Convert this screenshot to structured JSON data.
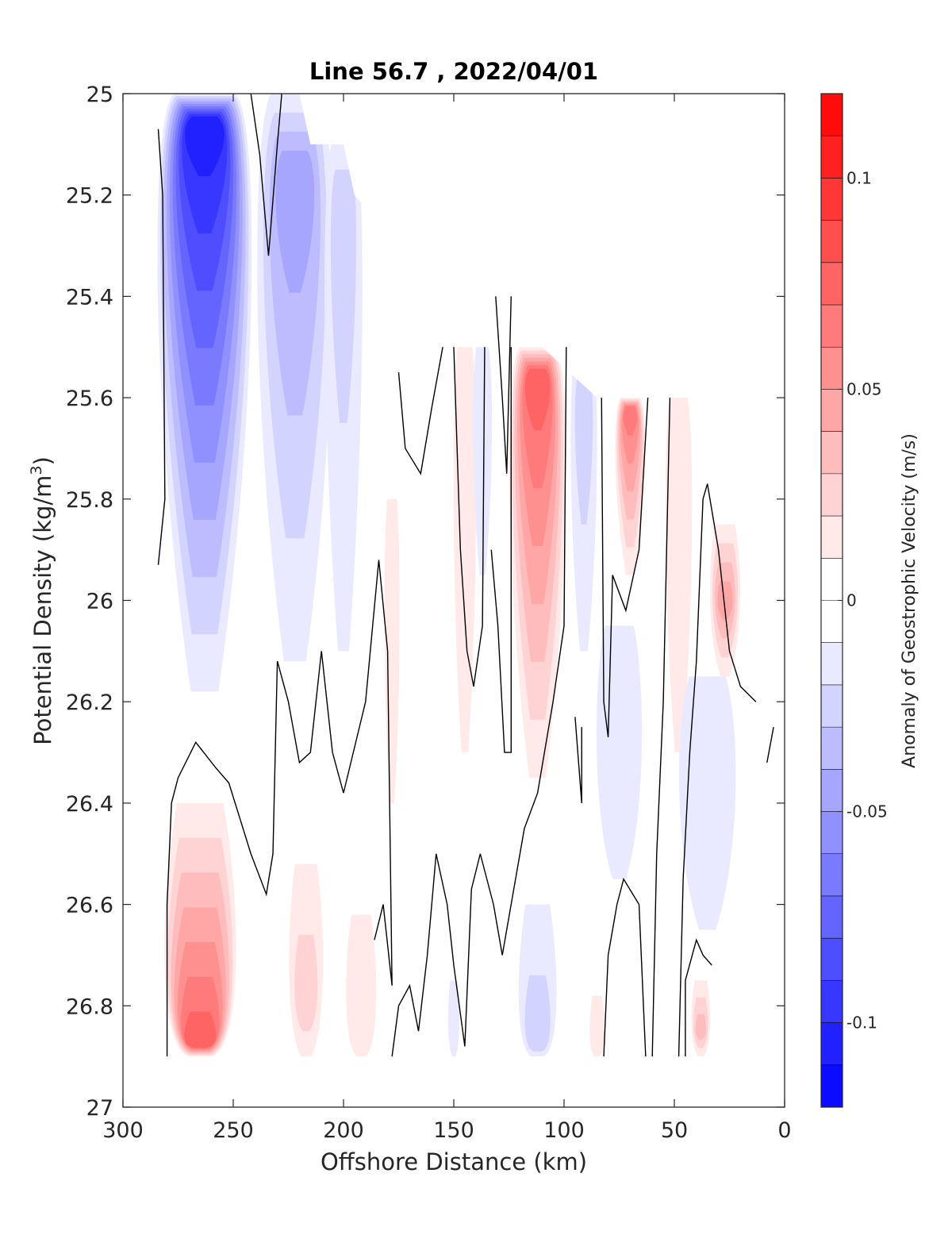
{
  "chart_data": {
    "type": "heatmap",
    "title": "Line 56.7 , 2022/04/01",
    "xlabel": "Offshore Distance (km)",
    "ylabel": "Potential Density (kg/m",
    "ylabel_sup": "3",
    "ylabel_end": ")",
    "x_reversed": true,
    "y_reversed": true,
    "xlim": [
      0,
      300
    ],
    "ylim": [
      25,
      27
    ],
    "xticks": [
      300,
      250,
      200,
      150,
      100,
      50,
      0
    ],
    "xtick_labels": [
      "300",
      "250",
      "200",
      "150",
      "100",
      "50",
      "0"
    ],
    "yticks": [
      25,
      25.2,
      25.4,
      25.6,
      25.8,
      26,
      26.2,
      26.4,
      26.6,
      26.8,
      27
    ],
    "ytick_labels": [
      "25",
      "25.2",
      "25.4",
      "25.6",
      "25.8",
      "26",
      "26.2",
      "26.4",
      "26.6",
      "26.8",
      "27"
    ],
    "colorbar": {
      "label": "Anomaly of Geostrophic Velocity (m/s)",
      "range": [
        -0.12,
        0.12
      ],
      "ticks": [
        0.1,
        0.05,
        0,
        -0.05,
        -0.1
      ],
      "tick_labels": [
        "0.1",
        "0.05",
        "0",
        "-0.05",
        "-0.1"
      ],
      "levels": 24,
      "colormap": "blue-white-red",
      "colors": {
        "negative": "#0000ff",
        "zero": "#ffffff",
        "positive": "#ff0000"
      }
    },
    "contour_level": 0,
    "contour_color": "#000000",
    "data_mask_top": [
      [
        300,
        25.0
      ],
      [
        220,
        25.0
      ],
      [
        215,
        25.1
      ],
      [
        200,
        25.1
      ],
      [
        195,
        25.2
      ],
      [
        175,
        25.3
      ],
      [
        160,
        25.4
      ],
      [
        150,
        25.5
      ],
      [
        110,
        25.5
      ],
      [
        85,
        25.6
      ],
      [
        50,
        25.6
      ],
      [
        0,
        25.6
      ]
    ],
    "data_bottom": 26.9,
    "anomaly_features": [
      {
        "x": 263,
        "y_top": 25.0,
        "y_bottom": 26.18,
        "peak_y": 25.05,
        "peak_value": -0.1,
        "width_km": 25
      },
      {
        "x": 222,
        "y_top": 25.0,
        "y_bottom": 26.12,
        "peak_y": 25.15,
        "peak_value": -0.045,
        "width_km": 20
      },
      {
        "x": 200,
        "y_top": 25.1,
        "y_bottom": 26.1,
        "peak_y": 25.2,
        "peak_value": -0.025,
        "width_km": 10
      },
      {
        "x": 112,
        "y_top": 25.5,
        "y_bottom": 26.35,
        "peak_y": 25.55,
        "peak_value": 0.075,
        "width_km": 15
      },
      {
        "x": 91,
        "y_top": 25.5,
        "y_bottom": 26.1,
        "peak_y": 25.6,
        "peak_value": -0.025,
        "width_km": 7
      },
      {
        "x": 70,
        "y_top": 25.6,
        "y_bottom": 25.95,
        "peak_y": 25.62,
        "peak_value": 0.06,
        "width_km": 8
      },
      {
        "x": 48,
        "y_top": 25.6,
        "y_bottom": 26.3,
        "peak_y": 25.7,
        "peak_value": 0.015,
        "width_km": 7
      },
      {
        "x": 27,
        "y_top": 25.85,
        "y_bottom": 26.15,
        "peak_y": 26.0,
        "peak_value": 0.045,
        "width_km": 8
      },
      {
        "x": 145,
        "y_top": 25.5,
        "y_bottom": 26.3,
        "peak_y": 25.7,
        "peak_value": 0.015,
        "width_km": 6
      },
      {
        "x": 137,
        "y_top": 25.5,
        "y_bottom": 25.95,
        "peak_y": 25.6,
        "peak_value": -0.012,
        "width_km": 5
      },
      {
        "x": 178,
        "y_top": 25.8,
        "y_bottom": 26.4,
        "peak_y": 26.0,
        "peak_value": 0.01,
        "width_km": 4
      },
      {
        "x": 75,
        "y_top": 26.05,
        "y_bottom": 26.55,
        "peak_y": 26.3,
        "peak_value": -0.015,
        "width_km": 12
      },
      {
        "x": 35,
        "y_top": 26.15,
        "y_bottom": 26.65,
        "peak_y": 26.35,
        "peak_value": -0.015,
        "width_km": 15
      },
      {
        "x": 265,
        "y_top": 26.4,
        "y_bottom": 26.9,
        "peak_y": 26.88,
        "peak_value": 0.07,
        "width_km": 19
      },
      {
        "x": 217,
        "y_top": 26.52,
        "y_bottom": 26.9,
        "peak_y": 26.8,
        "peak_value": 0.02,
        "width_km": 9
      },
      {
        "x": 192,
        "y_top": 26.62,
        "y_bottom": 26.9,
        "peak_y": 26.85,
        "peak_value": 0.012,
        "width_km": 8
      },
      {
        "x": 112,
        "y_top": 26.6,
        "y_bottom": 26.9,
        "peak_y": 26.88,
        "peak_value": -0.025,
        "width_km": 10
      },
      {
        "x": 85,
        "y_top": 26.78,
        "y_bottom": 26.9,
        "peak_y": 26.88,
        "peak_value": 0.015,
        "width_km": 4
      },
      {
        "x": 38,
        "y_top": 26.75,
        "y_bottom": 26.9,
        "peak_y": 26.85,
        "peak_value": 0.03,
        "width_km": 5
      },
      {
        "x": 150,
        "y_top": 26.75,
        "y_bottom": 26.9,
        "peak_y": 26.85,
        "peak_value": -0.01,
        "width_km": 3
      }
    ],
    "zero_contours": [
      [
        [
          284,
          25.07
        ],
        [
          282,
          25.2
        ],
        [
          281,
          25.8
        ],
        [
          284,
          25.93
        ]
      ],
      [
        [
          242,
          25.0
        ],
        [
          238,
          25.12
        ],
        [
          234,
          25.32
        ],
        [
          230,
          25.1
        ],
        [
          228,
          25.0
        ]
      ],
      [
        [
          280,
          26.9
        ],
        [
          280,
          26.6
        ],
        [
          278,
          26.4
        ],
        [
          275,
          26.35
        ],
        [
          267,
          26.28
        ],
        [
          258,
          26.33
        ],
        [
          252,
          26.36
        ],
        [
          242,
          26.5
        ],
        [
          235,
          26.58
        ],
        [
          232,
          26.5
        ],
        [
          230,
          26.12
        ],
        [
          225,
          26.2
        ],
        [
          220,
          26.32
        ],
        [
          215,
          26.3
        ],
        [
          210,
          26.1
        ],
        [
          205,
          26.3
        ],
        [
          200,
          26.38
        ],
        [
          190,
          26.2
        ],
        [
          184,
          25.92
        ],
        [
          180,
          26.1
        ],
        [
          178,
          26.76
        ],
        [
          182,
          26.6
        ],
        [
          186,
          26.67
        ]
      ],
      [
        [
          178,
          26.9
        ],
        [
          175,
          26.8
        ],
        [
          170,
          26.76
        ],
        [
          166,
          26.85
        ],
        [
          162,
          26.7
        ],
        [
          158,
          26.5
        ],
        [
          153,
          26.6
        ],
        [
          150,
          26.72
        ],
        [
          145,
          26.88
        ],
        [
          142,
          26.57
        ],
        [
          138,
          26.5
        ],
        [
          132,
          26.6
        ],
        [
          128,
          26.7
        ],
        [
          124,
          26.6
        ],
        [
          118,
          26.45
        ],
        [
          112,
          26.38
        ],
        [
          105,
          26.2
        ],
        [
          100,
          26.05
        ],
        [
          99,
          25.5
        ]
      ],
      [
        [
          175,
          25.55
        ],
        [
          172,
          25.7
        ],
        [
          165,
          25.75
        ],
        [
          160,
          25.62
        ],
        [
          155,
          25.5
        ]
      ],
      [
        [
          150,
          25.5
        ],
        [
          147,
          25.9
        ],
        [
          144,
          26.1
        ],
        [
          141,
          26.17
        ],
        [
          137,
          26.05
        ],
        [
          136,
          25.5
        ]
      ],
      [
        [
          131,
          25.4
        ],
        [
          128,
          25.6
        ],
        [
          126,
          25.75
        ],
        [
          124,
          25.4
        ]
      ],
      [
        [
          133,
          25.9
        ],
        [
          130,
          26.05
        ],
        [
          127,
          26.3
        ],
        [
          124,
          26.3
        ],
        [
          124,
          25.5
        ]
      ],
      [
        [
          95,
          26.23
        ],
        [
          92,
          26.4
        ],
        [
          92,
          26.25
        ]
      ],
      [
        [
          82,
          26.9
        ],
        [
          80,
          26.7
        ],
        [
          76,
          26.6
        ],
        [
          73,
          26.55
        ],
        [
          66,
          26.6
        ],
        [
          63,
          26.9
        ]
      ],
      [
        [
          83,
          25.6
        ],
        [
          82,
          26.2
        ],
        [
          80,
          26.27
        ],
        [
          78,
          25.95
        ],
        [
          72,
          26.02
        ],
        [
          66,
          25.9
        ],
        [
          62,
          25.6
        ]
      ],
      [
        [
          60,
          26.9
        ],
        [
          58,
          26.5
        ],
        [
          55,
          26.2
        ],
        [
          52,
          25.6
        ]
      ],
      [
        [
          48,
          26.9
        ],
        [
          46,
          26.55
        ],
        [
          43,
          26.3
        ],
        [
          40,
          26.12
        ],
        [
          37,
          25.8
        ],
        [
          35,
          25.77
        ],
        [
          30,
          25.9
        ],
        [
          25,
          26.1
        ],
        [
          20,
          26.17
        ],
        [
          13,
          26.2
        ]
      ],
      [
        [
          8,
          26.32
        ],
        [
          5,
          26.25
        ]
      ],
      [
        [
          45,
          26.9
        ],
        [
          45,
          26.75
        ],
        [
          40,
          26.67
        ],
        [
          37,
          26.7
        ],
        [
          33,
          26.72
        ]
      ]
    ]
  }
}
